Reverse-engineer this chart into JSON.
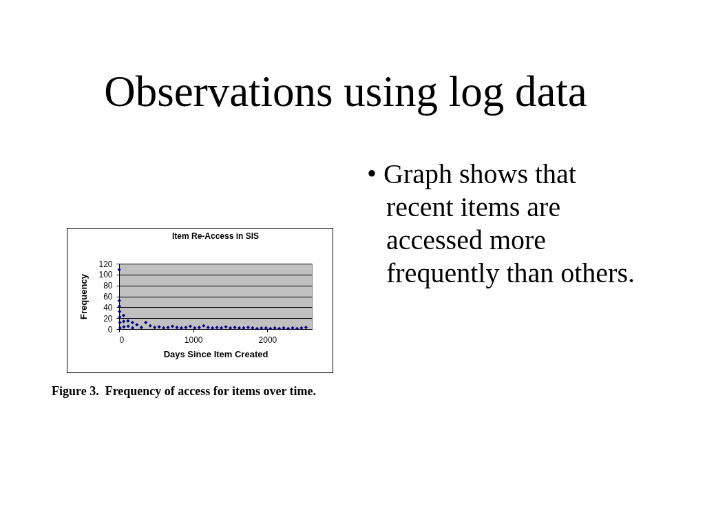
{
  "chart_data": {
    "type": "scatter",
    "title": "Item Re-Access in SIS",
    "xlabel": "Days Since Item Created",
    "ylabel": "Frequency",
    "annotations": [
      "Observations using log data",
      "• Graph shows that recent items are accessed more frequently than others.",
      "Figure 3.  Frequency of access for items over time."
    ],
    "x": [
      1,
      2,
      4,
      6,
      8,
      10,
      12,
      60,
      62,
      64,
      120,
      122,
      180,
      182,
      240,
      300,
      360,
      420,
      480,
      540,
      600,
      660,
      720,
      780,
      840,
      900,
      960,
      1020,
      1080,
      1140,
      1200,
      1260,
      1320,
      1380,
      1440,
      1500,
      1560,
      1620,
      1680,
      1740,
      1800,
      1860,
      1920,
      1980,
      2040,
      2100,
      2160,
      2220,
      2280,
      2340,
      2400,
      2460,
      2520
    ],
    "values": [
      109,
      52,
      42,
      32,
      22,
      12,
      2,
      25,
      14,
      4,
      15,
      5,
      12,
      2,
      8,
      3,
      12,
      6,
      3,
      4,
      2,
      3,
      5,
      3,
      2,
      3,
      5,
      2,
      3,
      6,
      3,
      2,
      3,
      2,
      4,
      2,
      3,
      2,
      2,
      3,
      2,
      1,
      2,
      2,
      1,
      2,
      1,
      2,
      1,
      2,
      1,
      2,
      3
    ],
    "color": "#000080",
    "marker": "diamond",
    "xlim": [
      0,
      2600
    ],
    "xticks": [
      0,
      1000,
      2000
    ],
    "ylim": [
      0,
      120
    ],
    "yticks": [
      0,
      20,
      40,
      60,
      80,
      100,
      120
    ],
    "grid": "y"
  }
}
